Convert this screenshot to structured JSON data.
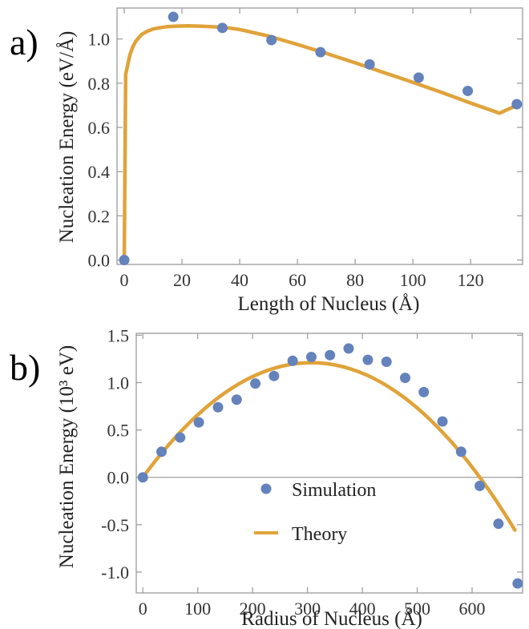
{
  "colors": {
    "simulation": "#6482BB",
    "theory": "#E0A33A",
    "frame": "#9a9a9a",
    "zero_line": "#8a8a8a"
  },
  "chart_data": [
    {
      "type": "scatter",
      "panel_label": "a)",
      "xlabel": "Length of Nucleus (Å)",
      "ylabel": "Nucleation Energy (eV/Å)",
      "xlim": [
        -2.5,
        138
      ],
      "ylim": [
        -0.02,
        1.14
      ],
      "xticks": [
        0,
        20,
        40,
        60,
        80,
        100,
        120
      ],
      "yticks": [
        0.0,
        0.2,
        0.4,
        0.6,
        0.8,
        1.0
      ],
      "ytick_labels": [
        "0.0",
        "0.2",
        "0.4",
        "0.6",
        "0.8",
        "1.0"
      ],
      "grid": false,
      "series": [
        {
          "kind": "points",
          "x": [
            0,
            17,
            34,
            51,
            68,
            85,
            102,
            119,
            136
          ],
          "y": [
            0.0,
            1.1,
            1.05,
            0.995,
            0.94,
            0.885,
            0.825,
            0.765,
            0.705
          ]
        },
        {
          "kind": "line",
          "x": [
            0,
            0.5,
            1,
            1.5,
            2,
            3,
            4,
            6,
            8,
            10,
            12,
            15,
            18,
            22,
            26,
            30,
            35,
            40,
            50,
            60,
            70,
            80,
            90,
            100,
            110,
            120,
            130,
            136
          ],
          "y": [
            0.0,
            0.84,
            0.87,
            0.9,
            0.93,
            0.965,
            0.99,
            1.02,
            1.035,
            1.045,
            1.05,
            1.056,
            1.058,
            1.059,
            1.058,
            1.056,
            1.052,
            1.043,
            1.013,
            0.975,
            0.935,
            0.892,
            0.848,
            0.804,
            0.758,
            0.71,
            0.664,
            0.7
          ]
        }
      ]
    },
    {
      "type": "scatter",
      "panel_label": "b)",
      "xlabel": "Radius of Nucleus (Å)",
      "ylabel": "Nucleation Energy (10³ eV)",
      "xlim": [
        -12,
        692
      ],
      "ylim": [
        -1.22,
        1.52
      ],
      "xticks": [
        0,
        100,
        200,
        300,
        400,
        500,
        600
      ],
      "yticks": [
        -1.0,
        -0.5,
        0.0,
        0.5,
        1.0,
        1.5
      ],
      "ytick_labels": [
        "-1.0",
        "-0.5",
        "0.0",
        "0.5",
        "1.0",
        "1.5"
      ],
      "grid": false,
      "zero_line": true,
      "legend_position": "center-right",
      "legend": [
        "Simulation",
        "Theory"
      ],
      "series": [
        {
          "name": "Simulation",
          "kind": "points",
          "x": [
            0,
            34,
            68,
            102,
            137,
            171,
            205,
            239,
            273,
            307,
            341,
            375,
            410,
            444,
            478,
            512,
            546,
            580,
            614,
            648,
            683
          ],
          "y": [
            0.0,
            0.27,
            0.42,
            0.58,
            0.74,
            0.82,
            0.99,
            1.07,
            1.23,
            1.27,
            1.29,
            1.36,
            1.24,
            1.22,
            1.05,
            0.9,
            0.59,
            0.27,
            -0.09,
            -0.49,
            -1.12
          ]
        },
        {
          "name": "Theory",
          "kind": "curve",
          "peak_x": 307,
          "peak_y": 1.21,
          "x_start": 0,
          "x_end": 683
        }
      ]
    }
  ]
}
